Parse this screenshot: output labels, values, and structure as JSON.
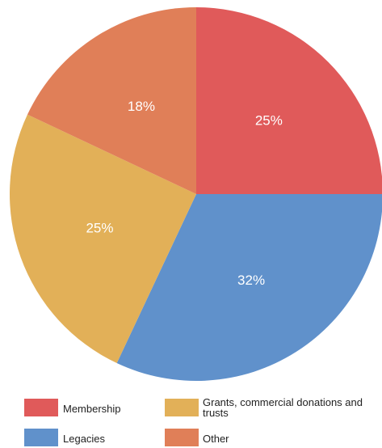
{
  "chart_data": {
    "type": "pie",
    "title": "",
    "slices": [
      {
        "label": "Membership",
        "value": 25,
        "value_label": "25%",
        "color": "#e05a5a"
      },
      {
        "label": "Legacies",
        "value": 32,
        "value_label": "32%",
        "color": "#6091cb"
      },
      {
        "label": "Grants, commercial donations and trusts",
        "value": 25,
        "value_label": "25%",
        "color": "#e2b058"
      },
      {
        "label": "Other",
        "value": 18,
        "value_label": "18%",
        "color": "#e07f58"
      }
    ],
    "start_angle_deg": 0,
    "direction": "clockwise",
    "legend_position": "bottom",
    "legend": {
      "membership": "Membership",
      "grants": "Grants, commercial donations and trusts",
      "legacies": "Legacies",
      "other": "Other"
    }
  }
}
